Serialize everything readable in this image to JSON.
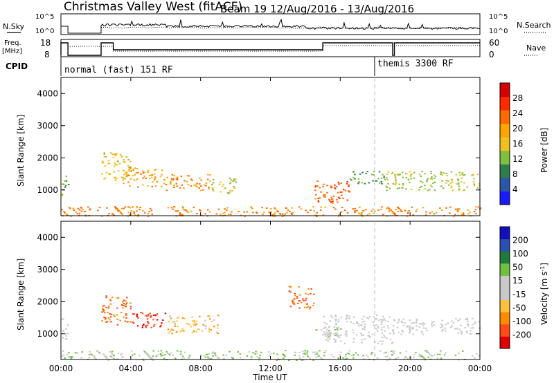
{
  "header": {
    "title": "Christmas Valley West (fitACF)",
    "beam": "Beam 19 12/Aug/2016 - 13/Aug/2016"
  },
  "top_panel": {
    "nsky_label": "N.Sky",
    "nsky_ticks": [
      "10^5",
      "10^0"
    ],
    "nsearch_label": "N.Search",
    "nsearch_ticks": [
      "10^5",
      "10^0"
    ]
  },
  "freq_panel": {
    "freq_label_1": "Freq.",
    "freq_label_2": "[MHz]",
    "freq_ticks": [
      "18",
      "8"
    ],
    "nave_label": "Nave",
    "nave_ticks": [
      "60",
      "0"
    ]
  },
  "cpid": {
    "label": "CPID",
    "modes": [
      {
        "name": "normal (fast) 151 RF",
        "start_hour": 0.4
      },
      {
        "name": "themis 3300 RF",
        "start_hour": 18.0
      }
    ]
  },
  "colors": {
    "power": [
      "#1a1aff",
      "#2a57a8",
      "#2e7d4f",
      "#7fbf3f",
      "#f0c020",
      "#ffa500",
      "#ff6a00",
      "#ff2a00",
      "#d50000"
    ],
    "velocity": [
      "#e00000",
      "#ff4a1a",
      "#ff8c00",
      "#ffc040",
      "#c8c8c8",
      "#c8c8c8",
      "#70c040",
      "#1f7a3a",
      "#2a4fb0",
      "#1010c0"
    ]
  },
  "chart_data": [
    {
      "type": "heatmap",
      "name": "power",
      "ylabel": "Slant Range [km]",
      "yticks": [
        "4000",
        "3000",
        "2000",
        "1000"
      ],
      "ylim": [
        200,
        4500
      ],
      "colorbar_label": "Power [dB]",
      "colorbar_ticks": [
        "28",
        "24",
        "20",
        "16",
        "12",
        "8",
        "4"
      ],
      "colorbar_range": [
        0,
        32
      ],
      "scatter_regions": [
        {
          "x": [
            0.0,
            0.4
          ],
          "y": [
            800,
            1500
          ],
          "v": 12
        },
        {
          "x": [
            2.3,
            4.0
          ],
          "y": [
            1300,
            2200
          ],
          "v": 16
        },
        {
          "x": [
            3.5,
            6.0
          ],
          "y": [
            1100,
            1700
          ],
          "v": 20
        },
        {
          "x": [
            6.0,
            8.5
          ],
          "y": [
            1000,
            1500
          ],
          "v": 22
        },
        {
          "x": [
            8.5,
            10.0
          ],
          "y": [
            900,
            1400
          ],
          "v": 14
        },
        {
          "x": [
            14.5,
            16.5
          ],
          "y": [
            600,
            1300
          ],
          "v": 24
        },
        {
          "x": [
            16.5,
            18.5
          ],
          "y": [
            1200,
            1600
          ],
          "v": 10
        },
        {
          "x": [
            18.5,
            24.0
          ],
          "y": [
            1000,
            1600
          ],
          "v": 14
        },
        {
          "x": [
            0.0,
            24.0
          ],
          "y": [
            200,
            500
          ],
          "v": 22
        }
      ]
    },
    {
      "type": "heatmap",
      "name": "velocity",
      "ylabel": "Slant Range [km]",
      "yticks": [
        "4000",
        "3000",
        "2000",
        "1000"
      ],
      "ylim": [
        200,
        4500
      ],
      "colorbar_label": "Velocity [m s^-1]",
      "colorbar_ticks": [
        "200",
        "100",
        "50",
        "15",
        "-15",
        "-50",
        "-100",
        "-200"
      ],
      "colorbar_range": [
        -250,
        250
      ],
      "scatter_regions": [
        {
          "x": [
            0.0,
            0.4
          ],
          "y": [
            800,
            1500
          ],
          "v": 0
        },
        {
          "x": [
            2.3,
            4.0
          ],
          "y": [
            1300,
            2200
          ],
          "v": -150
        },
        {
          "x": [
            4.0,
            6.0
          ],
          "y": [
            1200,
            1700
          ],
          "v": -200
        },
        {
          "x": [
            6.0,
            9.0
          ],
          "y": [
            1000,
            1600
          ],
          "v": -80
        },
        {
          "x": [
            13.0,
            14.5
          ],
          "y": [
            1800,
            2500
          ],
          "v": -150
        },
        {
          "x": [
            14.5,
            16.0
          ],
          "y": [
            900,
            1200
          ],
          "v": 40
        },
        {
          "x": [
            15.0,
            19.0
          ],
          "y": [
            700,
            1600
          ],
          "v": 0
        },
        {
          "x": [
            19.0,
            24.0
          ],
          "y": [
            1000,
            1500
          ],
          "v": 0
        },
        {
          "x": [
            0.0,
            24.0
          ],
          "y": [
            200,
            500
          ],
          "v": 50
        }
      ]
    }
  ],
  "xaxis": {
    "ticks": [
      "00:00",
      "04:00",
      "08:00",
      "12:00",
      "16:00",
      "20:00",
      "00:00"
    ],
    "label": "Time UT",
    "range": [
      0,
      24
    ]
  }
}
